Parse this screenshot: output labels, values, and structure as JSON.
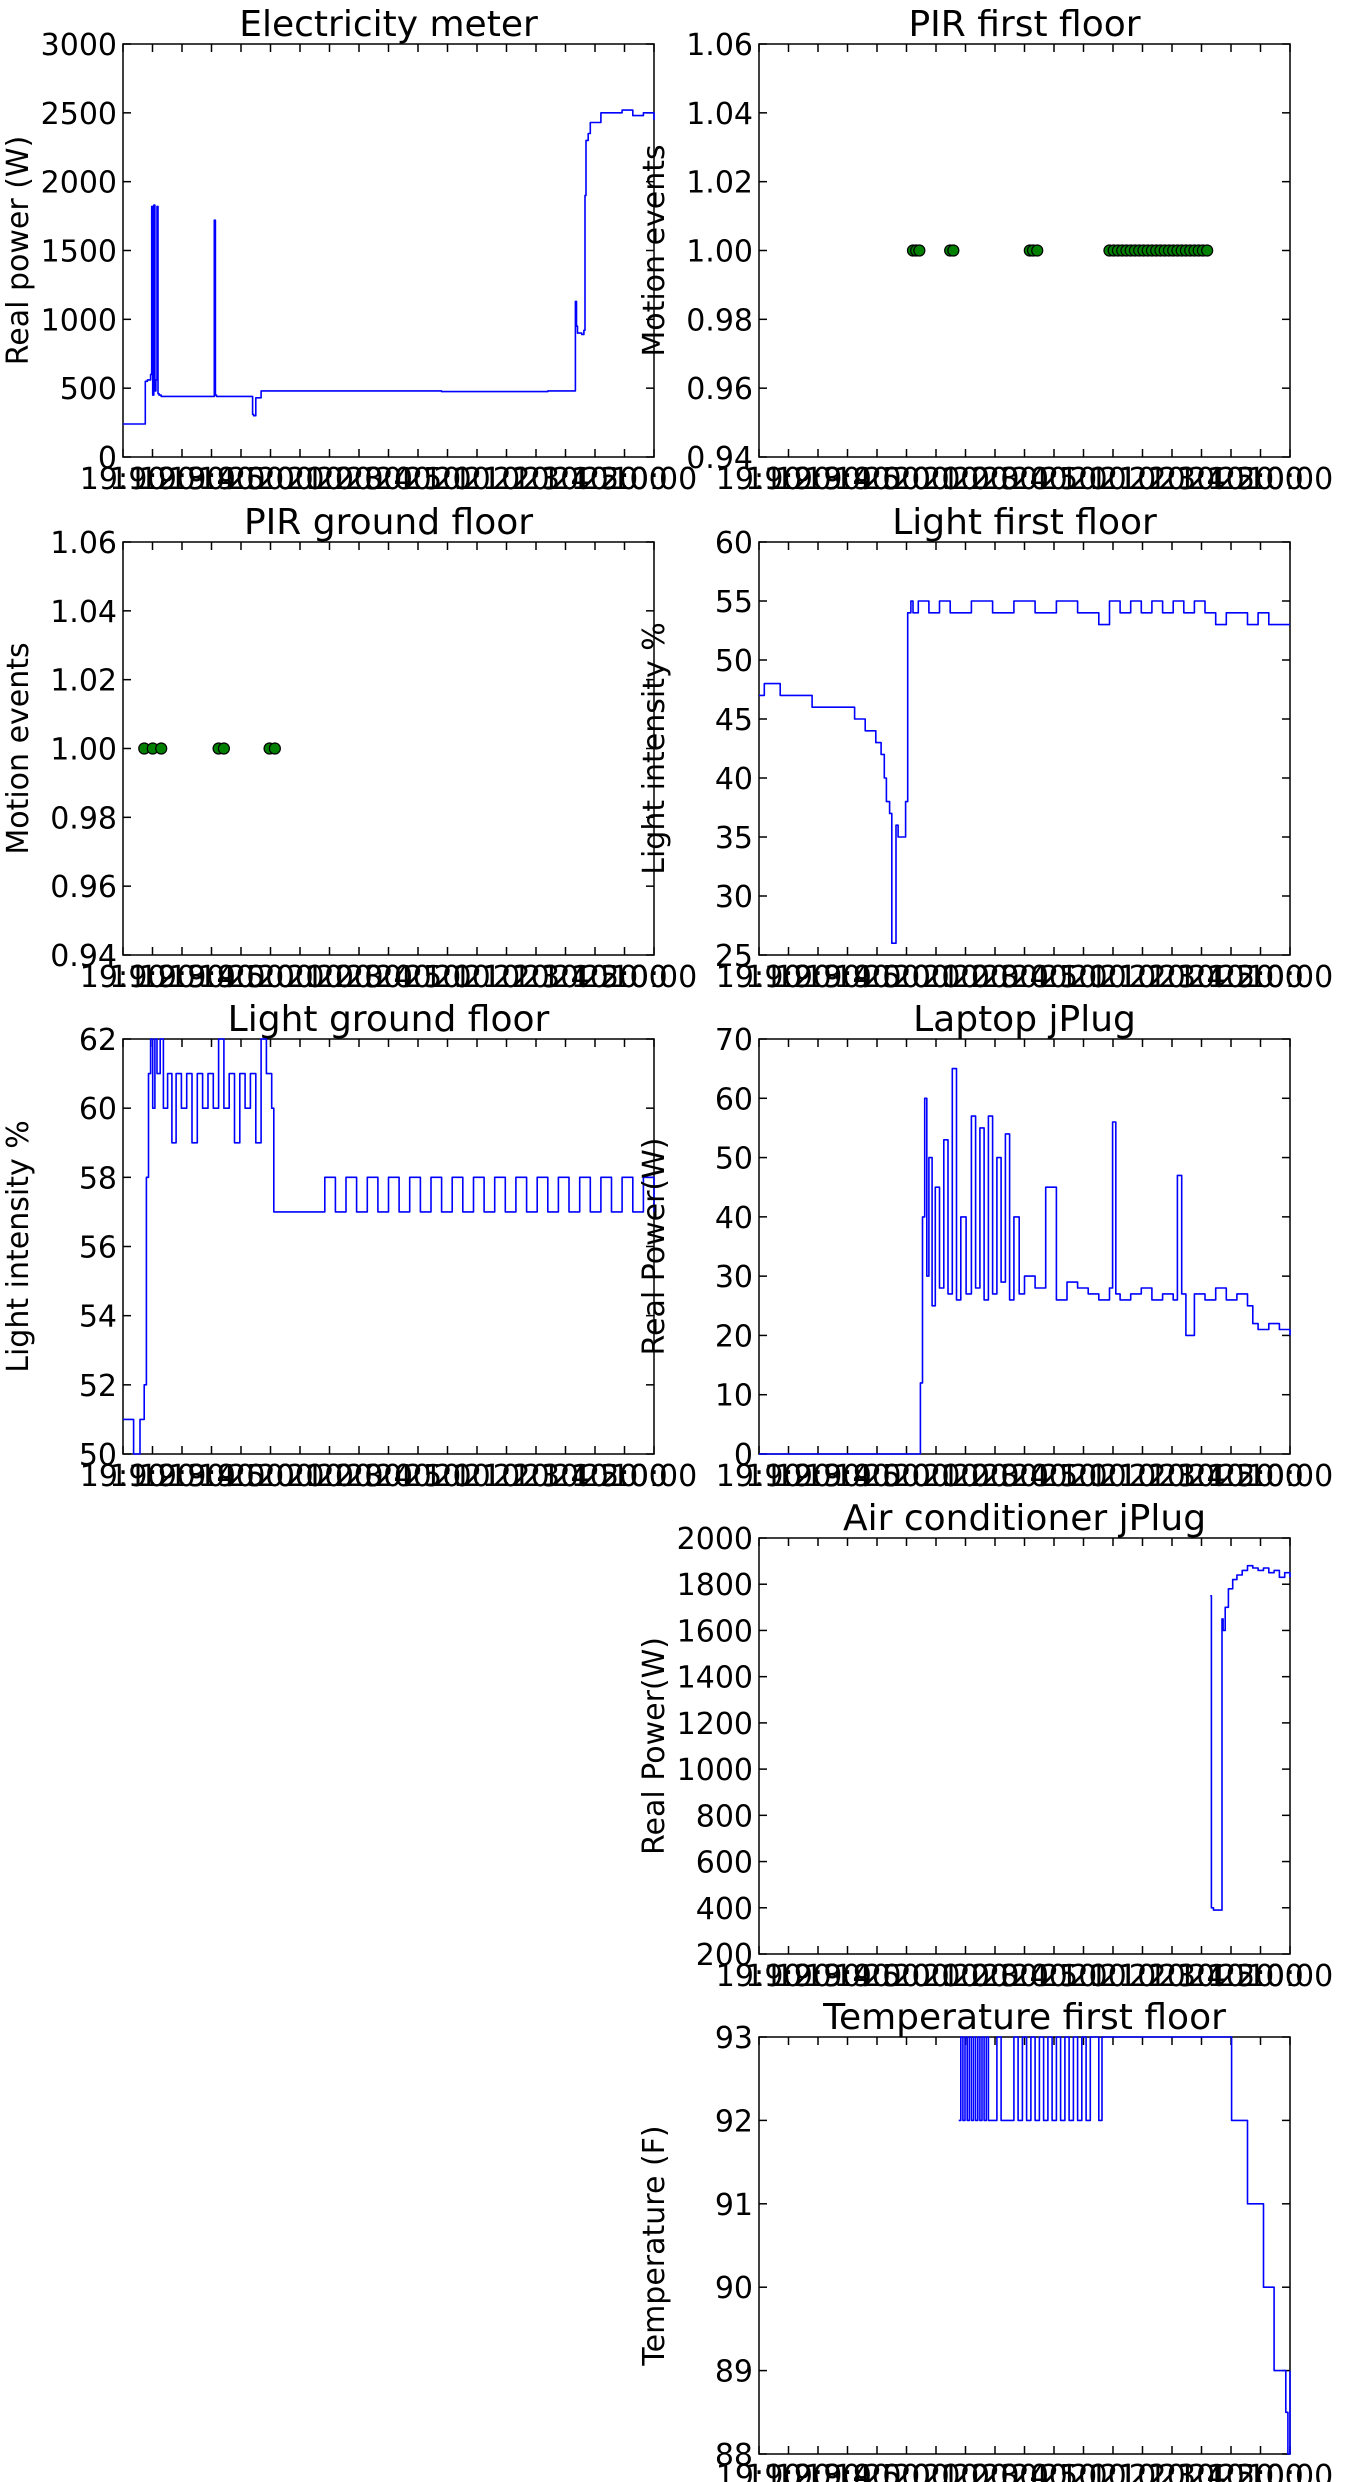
{
  "figure": {
    "panels": [
      {
        "id": "electricity",
        "title": "Electricity meter"
      },
      {
        "id": "pir-first",
        "title": "PIR first floor"
      },
      {
        "id": "pir-ground",
        "title": "PIR ground floor"
      },
      {
        "id": "light-first",
        "title": "Light first floor"
      },
      {
        "id": "light-ground",
        "title": "Light ground floor"
      },
      {
        "id": "laptop",
        "title": "Laptop jPlug"
      },
      {
        "id": "aircon",
        "title": "Air conditioner jPlug"
      },
      {
        "id": "temperature",
        "title": "Temperature first floor"
      }
    ]
  },
  "chart_data": [
    {
      "id": "electricity",
      "type": "line",
      "title": "Electricity meter",
      "ylabel": "Real power (W)",
      "xlabel": "",
      "xlim": [
        0,
        50
      ],
      "ylim": [
        0,
        3000
      ],
      "yticks": [
        "0",
        "500",
        "1000",
        "1500",
        "2000",
        "2500",
        "3000"
      ],
      "xticks_note": "19:10 ... 10:00 (overlapping time labels)",
      "grid": false,
      "color": "#0000ff",
      "series": [
        {
          "x": [
            0,
            2.0,
            2.1,
            2.3,
            2.6,
            2.7,
            2.8,
            2.9,
            3.0,
            3.1,
            3.2,
            3.3,
            3.4,
            3.5,
            3.6,
            4.0,
            8.5,
            8.6,
            8.7,
            8.8,
            12.0,
            12.2,
            12.3,
            12.5,
            13,
            20,
            30,
            40,
            42.5,
            42.6,
            42.7,
            42.8,
            43.2,
            43.4,
            43.5,
            43.6,
            43.8,
            44.0,
            45.0,
            46,
            47,
            48,
            49,
            50
          ],
          "y": [
            240,
            240,
            550,
            560,
            600,
            1820,
            450,
            1830,
            480,
            560,
            1820,
            460,
            450,
            450,
            440,
            440,
            440,
            1720,
            450,
            440,
            440,
            310,
            300,
            430,
            480,
            480,
            475,
            480,
            480,
            1130,
            950,
            900,
            890,
            920,
            1900,
            2300,
            2350,
            2430,
            2500,
            2500,
            2520,
            2480,
            2500,
            2450
          ]
        }
      ]
    },
    {
      "id": "pir-first",
      "type": "scatter",
      "title": "PIR first floor",
      "ylabel": "Motion events",
      "xlabel": "",
      "xlim": [
        0,
        50
      ],
      "ylim": [
        0.94,
        1.06
      ],
      "yticks": [
        "0.94",
        "0.96",
        "0.98",
        "1.00",
        "1.02",
        "1.04",
        "1.06"
      ],
      "xticks_note": "19:10 ... 10:00 (overlapping time labels)",
      "grid": false,
      "color": "#008000",
      "series": [
        {
          "x": [
            14.5,
            14.8,
            15.1,
            18.0,
            18.3,
            25.5,
            25.8,
            26.2,
            33.0,
            33.4,
            33.8,
            34.2,
            34.6,
            35.0,
            35.4,
            35.8,
            36.2,
            36.6,
            37.0,
            37.4,
            37.8,
            38.2,
            38.6,
            39.0,
            39.4,
            39.8,
            40.2,
            40.6,
            41.0,
            41.4,
            41.8,
            42.2
          ],
          "y": [
            1.0,
            1.0,
            1.0,
            1.0,
            1.0,
            1.0,
            1.0,
            1.0,
            1.0,
            1.0,
            1.0,
            1.0,
            1.0,
            1.0,
            1.0,
            1.0,
            1.0,
            1.0,
            1.0,
            1.0,
            1.0,
            1.0,
            1.0,
            1.0,
            1.0,
            1.0,
            1.0,
            1.0,
            1.0,
            1.0,
            1.0,
            1.0
          ]
        }
      ]
    },
    {
      "id": "pir-ground",
      "type": "scatter",
      "title": "PIR ground floor",
      "ylabel": "Motion events",
      "xlabel": "",
      "xlim": [
        0,
        50
      ],
      "ylim": [
        0.94,
        1.06
      ],
      "yticks": [
        "0.94",
        "0.96",
        "0.98",
        "1.00",
        "1.02",
        "1.04",
        "1.06"
      ],
      "xticks_note": "19:10 ... 10:00 (overlapping time labels)",
      "grid": false,
      "color": "#008000",
      "series": [
        {
          "x": [
            2.0,
            2.8,
            3.6,
            9.0,
            9.5,
            13.8,
            14.3
          ],
          "y": [
            1.0,
            1.0,
            1.0,
            1.0,
            1.0,
            1.0,
            1.0
          ]
        }
      ]
    },
    {
      "id": "light-first",
      "type": "line",
      "title": "Light first floor",
      "ylabel": "Light intensity %",
      "xlabel": "",
      "xlim": [
        0,
        50
      ],
      "ylim": [
        25,
        60
      ],
      "yticks": [
        "25",
        "30",
        "35",
        "40",
        "45",
        "50",
        "55",
        "60"
      ],
      "xticks_note": "19:10 ... 10:00 (overlapping time labels)",
      "grid": false,
      "color": "#0000ff",
      "series": [
        {
          "x": [
            0,
            0.5,
            1.5,
            2,
            4.5,
            5,
            8.5,
            9,
            10,
            11,
            11.5,
            11.8,
            12,
            12.3,
            12.5,
            12.7,
            12.9,
            13.1,
            13.3,
            13.8,
            14.0,
            14.3,
            14.5,
            15,
            16,
            17,
            18,
            20,
            22,
            24,
            26,
            28,
            30,
            32,
            33,
            34,
            35,
            36,
            37,
            38,
            39,
            40,
            41,
            42,
            43,
            44,
            45,
            46,
            47,
            48,
            49,
            50
          ],
          "y": [
            47,
            48,
            48,
            47,
            47,
            46,
            46,
            45,
            44,
            43,
            42,
            40,
            38,
            37,
            26,
            26,
            36,
            35,
            35,
            38,
            54,
            55,
            54,
            55,
            54,
            55,
            54,
            55,
            54,
            55,
            54,
            55,
            54,
            53,
            55,
            54,
            55,
            54,
            55,
            54,
            55,
            54,
            55,
            54,
            53,
            54,
            54,
            53,
            54,
            53,
            53,
            53
          ]
        }
      ]
    },
    {
      "id": "light-ground",
      "type": "line",
      "title": "Light ground floor",
      "ylabel": "Light intensity %",
      "xlabel": "",
      "xlim": [
        0,
        50
      ],
      "ylim": [
        50,
        62
      ],
      "yticks": [
        "50",
        "52",
        "54",
        "56",
        "58",
        "60",
        "62"
      ],
      "xticks_note": "19:10 ... 10:00 (overlapping time labels)",
      "grid": false,
      "color": "#0000ff",
      "series": [
        {
          "x": [
            0,
            0.5,
            1.0,
            1.3,
            1.6,
            2.0,
            2.2,
            2.4,
            2.6,
            2.8,
            3.0,
            3.2,
            3.5,
            3.8,
            4.2,
            4.6,
            5.0,
            5.5,
            6.0,
            6.5,
            7.0,
            7.5,
            8.0,
            8.5,
            9.0,
            9.5,
            10.0,
            10.5,
            11.0,
            11.5,
            12.0,
            12.5,
            13.0,
            13.5,
            14.0,
            14.2,
            14.5,
            15,
            18,
            19,
            20,
            21,
            22,
            23,
            24,
            25,
            26,
            27,
            28,
            29,
            30,
            31,
            32,
            33,
            34,
            35,
            36,
            37,
            38,
            39,
            40,
            41,
            42,
            43,
            44,
            45,
            46,
            47,
            48,
            49,
            50
          ],
          "y": [
            51,
            51,
            50,
            50,
            51,
            52,
            58,
            61,
            62,
            60,
            62,
            61,
            62,
            60,
            61,
            59,
            61,
            60,
            61,
            59,
            61,
            60,
            61,
            60,
            62,
            60,
            61,
            59,
            61,
            60,
            61,
            59,
            62,
            61,
            60,
            57,
            57,
            57,
            57,
            58,
            57,
            58,
            57,
            58,
            57,
            58,
            57,
            58,
            57,
            58,
            57,
            58,
            57,
            58,
            57,
            58,
            57,
            58,
            57,
            58,
            57,
            58,
            57,
            58,
            57,
            58,
            57,
            58,
            57,
            58,
            57
          ]
        }
      ]
    },
    {
      "id": "laptop",
      "type": "line",
      "title": "Laptop jPlug",
      "ylabel": "Real Power(W)",
      "xlabel": "",
      "xlim": [
        0,
        50
      ],
      "ylim": [
        0,
        70
      ],
      "yticks": [
        "0",
        "10",
        "20",
        "30",
        "40",
        "50",
        "60",
        "70"
      ],
      "xticks_note": "19:10 ... 10:00 (overlapping time labels)",
      "grid": false,
      "color": "#0000ff",
      "series": [
        {
          "x": [
            0,
            15.0,
            15.2,
            15.4,
            15.6,
            15.8,
            16.0,
            16.3,
            16.6,
            17.0,
            17.4,
            17.8,
            18.2,
            18.6,
            19.0,
            19.5,
            20.0,
            20.4,
            20.8,
            21.2,
            21.6,
            22.0,
            22.4,
            22.8,
            23.2,
            23.6,
            24.0,
            24.5,
            25.0,
            26.0,
            27.0,
            28.0,
            29.0,
            30.0,
            31.0,
            32.0,
            33.0,
            33.3,
            33.6,
            34.0,
            35.0,
            36.0,
            37.0,
            38.0,
            39.0,
            39.4,
            39.8,
            40.2,
            41.0,
            42.0,
            43.0,
            44.0,
            45.0,
            46.0,
            46.5,
            47.0,
            48.0,
            49.0,
            50.0
          ],
          "y": [
            0,
            0,
            12,
            40,
            60,
            30,
            50,
            25,
            45,
            28,
            53,
            27,
            65,
            26,
            40,
            27,
            57,
            28,
            55,
            26,
            57,
            27,
            50,
            29,
            54,
            26,
            40,
            27,
            30,
            28,
            45,
            26,
            29,
            28,
            27,
            26,
            28,
            56,
            27,
            26,
            27,
            28,
            26,
            27,
            26,
            47,
            27,
            20,
            27,
            26,
            28,
            26,
            27,
            25,
            22,
            21,
            22,
            21,
            20
          ]
        }
      ]
    },
    {
      "id": "aircon",
      "type": "line",
      "title": "Air conditioner jPlug",
      "ylabel": "Real Power(W)",
      "xlabel": "",
      "xlim": [
        0,
        50
      ],
      "ylim": [
        200,
        2000
      ],
      "yticks": [
        "200",
        "400",
        "600",
        "800",
        "1000",
        "1200",
        "1400",
        "1600",
        "1800",
        "2000"
      ],
      "xticks_note": "19:10 ... 10:00 (overlapping time labels)",
      "grid": false,
      "color": "#0000ff",
      "series": [
        {
          "x": [
            42.5,
            42.6,
            42.8,
            43.5,
            43.6,
            43.7,
            43.9,
            44.2,
            44.6,
            45.0,
            45.5,
            46.0,
            46.5,
            47.0,
            47.5,
            48.0,
            48.5,
            49.0,
            49.5,
            50.0
          ],
          "y": [
            1750,
            400,
            390,
            390,
            1650,
            1600,
            1700,
            1780,
            1820,
            1840,
            1860,
            1880,
            1870,
            1860,
            1870,
            1850,
            1860,
            1830,
            1850,
            1830
          ]
        }
      ]
    },
    {
      "id": "temperature",
      "type": "line",
      "title": "Temperature first floor",
      "ylabel": "Temperature (F)",
      "xlabel": "",
      "xlim": [
        0,
        50
      ],
      "ylim": [
        88,
        93
      ],
      "yticks": [
        "88",
        "89",
        "90",
        "91",
        "92",
        "93"
      ],
      "xticks_note": "19:10 ... 10:00 (overlapping time labels)",
      "grid": false,
      "color": "#0000ff",
      "series": [
        {
          "x": [
            18.8,
            19.0,
            19.2,
            19.4,
            19.6,
            19.8,
            20.0,
            20.2,
            20.4,
            20.6,
            20.8,
            21.0,
            21.2,
            21.4,
            21.6,
            22.0,
            22.4,
            22.8,
            23.2,
            23.6,
            24.0,
            24.4,
            24.8,
            25.2,
            25.6,
            26.0,
            26.4,
            26.8,
            27.2,
            27.6,
            28.0,
            28.4,
            28.8,
            29.2,
            29.6,
            30.0,
            30.4,
            30.8,
            31.2,
            32.0,
            32.3,
            44.3,
            44.5,
            45.0,
            45.5,
            46.0,
            46.5,
            47.0,
            47.5,
            48.0,
            48.5,
            49.0,
            49.6,
            49.8,
            50.0
          ],
          "y": [
            92,
            93,
            92,
            93,
            92,
            93,
            92,
            93,
            92,
            93,
            92,
            93,
            92,
            93,
            92,
            92,
            93,
            92,
            92,
            92,
            93,
            92,
            93,
            92,
            93,
            92,
            93,
            92,
            93,
            92,
            93,
            92,
            93,
            92,
            93,
            92,
            93,
            92,
            93,
            92,
            93,
            93,
            92,
            92,
            92,
            91,
            91,
            91,
            90,
            90,
            89,
            89,
            88.5,
            88,
            89
          ]
        }
      ]
    }
  ]
}
